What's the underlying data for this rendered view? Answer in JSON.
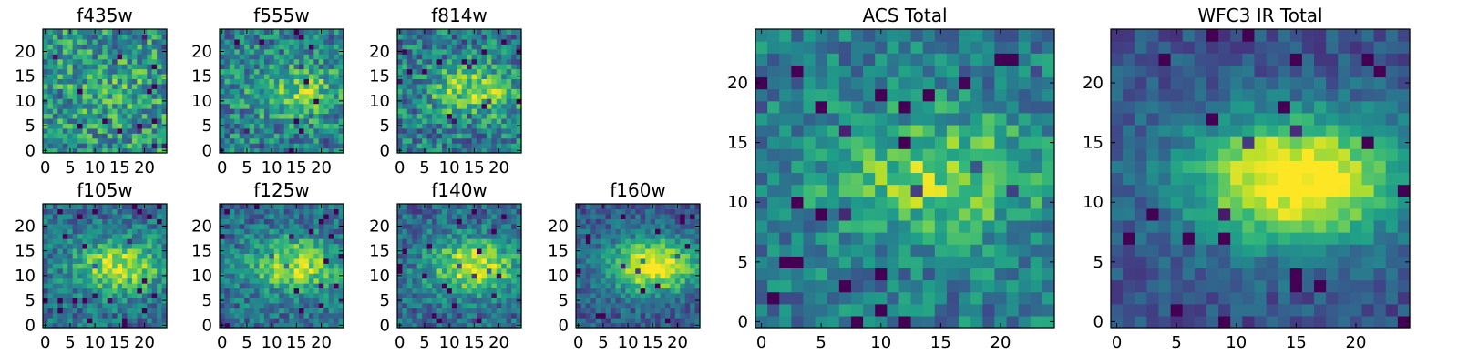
{
  "chart_data": [
    {
      "type": "heatmap",
      "title": "f435w",
      "colormap": "viridis",
      "xlim": [
        0,
        24
      ],
      "ylim": [
        0,
        24
      ],
      "xticks": [
        0,
        5,
        10,
        15,
        20
      ],
      "yticks": [
        0,
        5,
        10,
        15,
        20
      ],
      "grid_size": [
        25,
        25
      ],
      "noise": 0.28,
      "blob": 0.1
    },
    {
      "type": "heatmap",
      "title": "f555w",
      "colormap": "viridis",
      "xlim": [
        0,
        24
      ],
      "ylim": [
        0,
        24
      ],
      "xticks": [
        0,
        5,
        10,
        15,
        20
      ],
      "yticks": [
        0,
        5,
        10,
        15,
        20
      ],
      "grid_size": [
        25,
        25
      ],
      "noise": 0.26,
      "blob": 0.35
    },
    {
      "type": "heatmap",
      "title": "f814w",
      "colormap": "viridis",
      "xlim": [
        0,
        24
      ],
      "ylim": [
        0,
        24
      ],
      "xticks": [
        0,
        5,
        10,
        15,
        20
      ],
      "yticks": [
        0,
        5,
        10,
        15,
        20
      ],
      "grid_size": [
        25,
        25
      ],
      "noise": 0.26,
      "blob": 0.4
    },
    {
      "type": "heatmap",
      "title": "f105w",
      "colormap": "viridis",
      "xlim": [
        0,
        24
      ],
      "ylim": [
        0,
        24
      ],
      "xticks": [
        0,
        5,
        10,
        15,
        20
      ],
      "yticks": [
        0,
        5,
        10,
        15,
        20
      ],
      "grid_size": [
        25,
        25
      ],
      "noise": 0.2,
      "blob": 0.55
    },
    {
      "type": "heatmap",
      "title": "f125w",
      "colormap": "viridis",
      "xlim": [
        0,
        24
      ],
      "ylim": [
        0,
        24
      ],
      "xticks": [
        0,
        5,
        10,
        15,
        20
      ],
      "yticks": [
        0,
        5,
        10,
        15,
        20
      ],
      "grid_size": [
        25,
        25
      ],
      "noise": 0.2,
      "blob": 0.55
    },
    {
      "type": "heatmap",
      "title": "f140w",
      "colormap": "viridis",
      "xlim": [
        0,
        24
      ],
      "ylim": [
        0,
        24
      ],
      "xticks": [
        0,
        5,
        10,
        15,
        20
      ],
      "yticks": [
        0,
        5,
        10,
        15,
        20
      ],
      "grid_size": [
        25,
        25
      ],
      "noise": 0.2,
      "blob": 0.6
    },
    {
      "type": "heatmap",
      "title": "f160w",
      "colormap": "viridis",
      "xlim": [
        0,
        24
      ],
      "ylim": [
        0,
        24
      ],
      "xticks": [
        0,
        5,
        10,
        15,
        20
      ],
      "yticks": [
        0,
        5,
        10,
        15,
        20
      ],
      "grid_size": [
        25,
        25
      ],
      "noise": 0.16,
      "blob": 0.75
    },
    {
      "type": "heatmap",
      "title": "ACS Total",
      "colormap": "viridis",
      "xlim": [
        0,
        24
      ],
      "ylim": [
        0,
        24
      ],
      "xticks": [
        0,
        5,
        10,
        15,
        20
      ],
      "yticks": [
        0,
        5,
        10,
        15,
        20
      ],
      "grid_size": [
        25,
        25
      ],
      "noise": 0.2,
      "blob": 0.4
    },
    {
      "type": "heatmap",
      "title": "WFC3 IR Total",
      "colormap": "viridis",
      "xlim": [
        0,
        24
      ],
      "ylim": [
        0,
        24
      ],
      "xticks": [
        0,
        5,
        10,
        15,
        20
      ],
      "yticks": [
        0,
        5,
        10,
        15,
        20
      ],
      "grid_size": [
        25,
        25
      ],
      "noise": 0.12,
      "blob": 0.85
    }
  ]
}
